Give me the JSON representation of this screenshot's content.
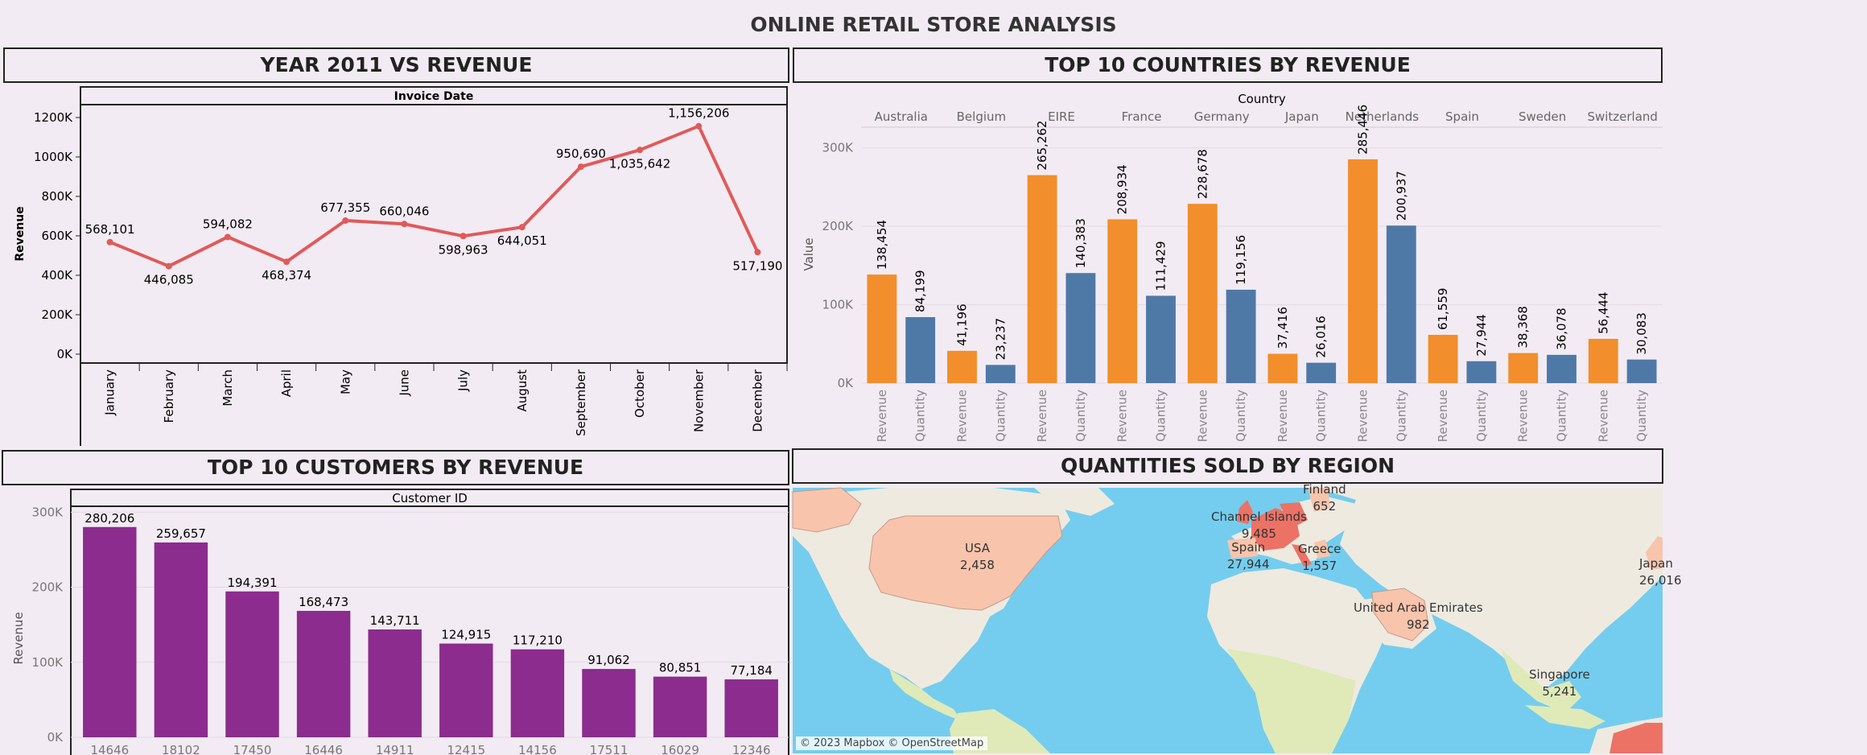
{
  "dashboard_title": "ONLINE RETAIL STORE ANALYSIS",
  "panels": {
    "revenue_by_month": {
      "title": "YEAR 2011 VS REVENUE",
      "header": "Invoice Date",
      "ylabel": "Revenue",
      "color": "#e05a5a"
    },
    "countries": {
      "title": "TOP 10 COUNTRIES BY REVENUE",
      "header": "Country",
      "ylabel": "Value",
      "revenue_color": "#f28e2b",
      "quantity_color": "#4e79a7"
    },
    "customers": {
      "title": "TOP 10 CUSTOMERS BY REVENUE",
      "header": "Customer ID",
      "ylabel": "Revenue",
      "color": "#8b2c8e"
    },
    "map": {
      "title": "QUANTITIES SOLD BY REGION",
      "attribution": "© 2023 Mapbox © OpenStreetMap",
      "labels": [
        {
          "name": "USA",
          "value": "2,458"
        },
        {
          "name": "Channel Islands",
          "value": "9,485"
        },
        {
          "name": "Spain",
          "value": "27,944"
        },
        {
          "name": "Greece",
          "value": "1,557"
        },
        {
          "name": "Finland",
          "value": "652"
        },
        {
          "name": "United Arab Emirates",
          "value": "982"
        },
        {
          "name": "Singapore",
          "value": "5,241"
        },
        {
          "name": "Japan",
          "value": "26,016"
        }
      ],
      "colors": {
        "water": "#74cdee",
        "land": "#eeeae0",
        "vegetation": "#dfeab8",
        "low": "#f8c4ac",
        "high": "#ec7266"
      }
    }
  },
  "chart_data": [
    {
      "id": "revenue_by_month",
      "type": "line",
      "title": "YEAR 2011 VS REVENUE",
      "xlabel": "Invoice Date",
      "ylabel": "Revenue",
      "categories": [
        "January",
        "February",
        "March",
        "April",
        "May",
        "June",
        "July",
        "August",
        "September",
        "October",
        "November",
        "December"
      ],
      "values": [
        568101,
        446085,
        594082,
        468374,
        677355,
        660046,
        598963,
        644051,
        950690,
        1035642,
        1156206,
        517190
      ],
      "value_labels": [
        "568,101",
        "446,085",
        "594,082",
        "468,374",
        "677,355",
        "660,046",
        "598,963",
        "644,051",
        "950,690",
        "1,035,642",
        "1,156,206",
        "517,190"
      ],
      "ylim": [
        0,
        1200000
      ],
      "yticks": [
        0,
        200000,
        400000,
        600000,
        800000,
        1000000,
        1200000
      ],
      "ytick_labels": [
        "0K",
        "200K",
        "400K",
        "600K",
        "800K",
        "1000K",
        "1200K"
      ]
    },
    {
      "id": "countries",
      "type": "bar",
      "title": "TOP 10 COUNTRIES BY REVENUE",
      "xlabel": "Country",
      "ylabel": "Value",
      "categories": [
        "Australia",
        "Belgium",
        "EIRE",
        "France",
        "Germany",
        "Japan",
        "Netherlands",
        "Spain",
        "Sweden",
        "Switzerland"
      ],
      "measure_names": [
        "Revenue",
        "Quantity"
      ],
      "series": [
        {
          "name": "Revenue",
          "values": [
            138454,
            41196,
            265262,
            208934,
            228678,
            37416,
            285446,
            61559,
            38368,
            56444
          ],
          "labels": [
            "138,454",
            "41,196",
            "265,262",
            "208,934",
            "228,678",
            "37,416",
            "285,446",
            "61,559",
            "38,368",
            "56,444"
          ]
        },
        {
          "name": "Quantity",
          "values": [
            84199,
            23237,
            140383,
            111429,
            119156,
            26016,
            200937,
            27944,
            36078,
            30083
          ],
          "labels": [
            "84,199",
            "23,237",
            "140,383",
            "111,429",
            "119,156",
            "26,016",
            "200,937",
            "27,944",
            "36,078",
            "30,083"
          ]
        }
      ],
      "ylim": [
        0,
        310000
      ],
      "yticks": [
        0,
        100000,
        200000,
        300000
      ],
      "ytick_labels": [
        "0K",
        "100K",
        "200K",
        "300K"
      ]
    },
    {
      "id": "customers",
      "type": "bar",
      "title": "TOP 10 CUSTOMERS BY REVENUE",
      "xlabel": "Customer ID",
      "ylabel": "Revenue",
      "categories": [
        "14646",
        "18102",
        "17450",
        "16446",
        "14911",
        "12415",
        "14156",
        "17511",
        "16029",
        "12346"
      ],
      "values": [
        280206,
        259657,
        194391,
        168473,
        143711,
        124915,
        117210,
        91062,
        80851,
        77184
      ],
      "value_labels": [
        "280,206",
        "259,657",
        "194,391",
        "168,473",
        "143,711",
        "124,915",
        "117,210",
        "91,062",
        "80,851",
        "77,184"
      ],
      "ylim": [
        0,
        310000
      ],
      "yticks": [
        0,
        100000,
        200000,
        300000
      ],
      "ytick_labels": [
        "0K",
        "100K",
        "200K",
        "300K"
      ]
    }
  ]
}
